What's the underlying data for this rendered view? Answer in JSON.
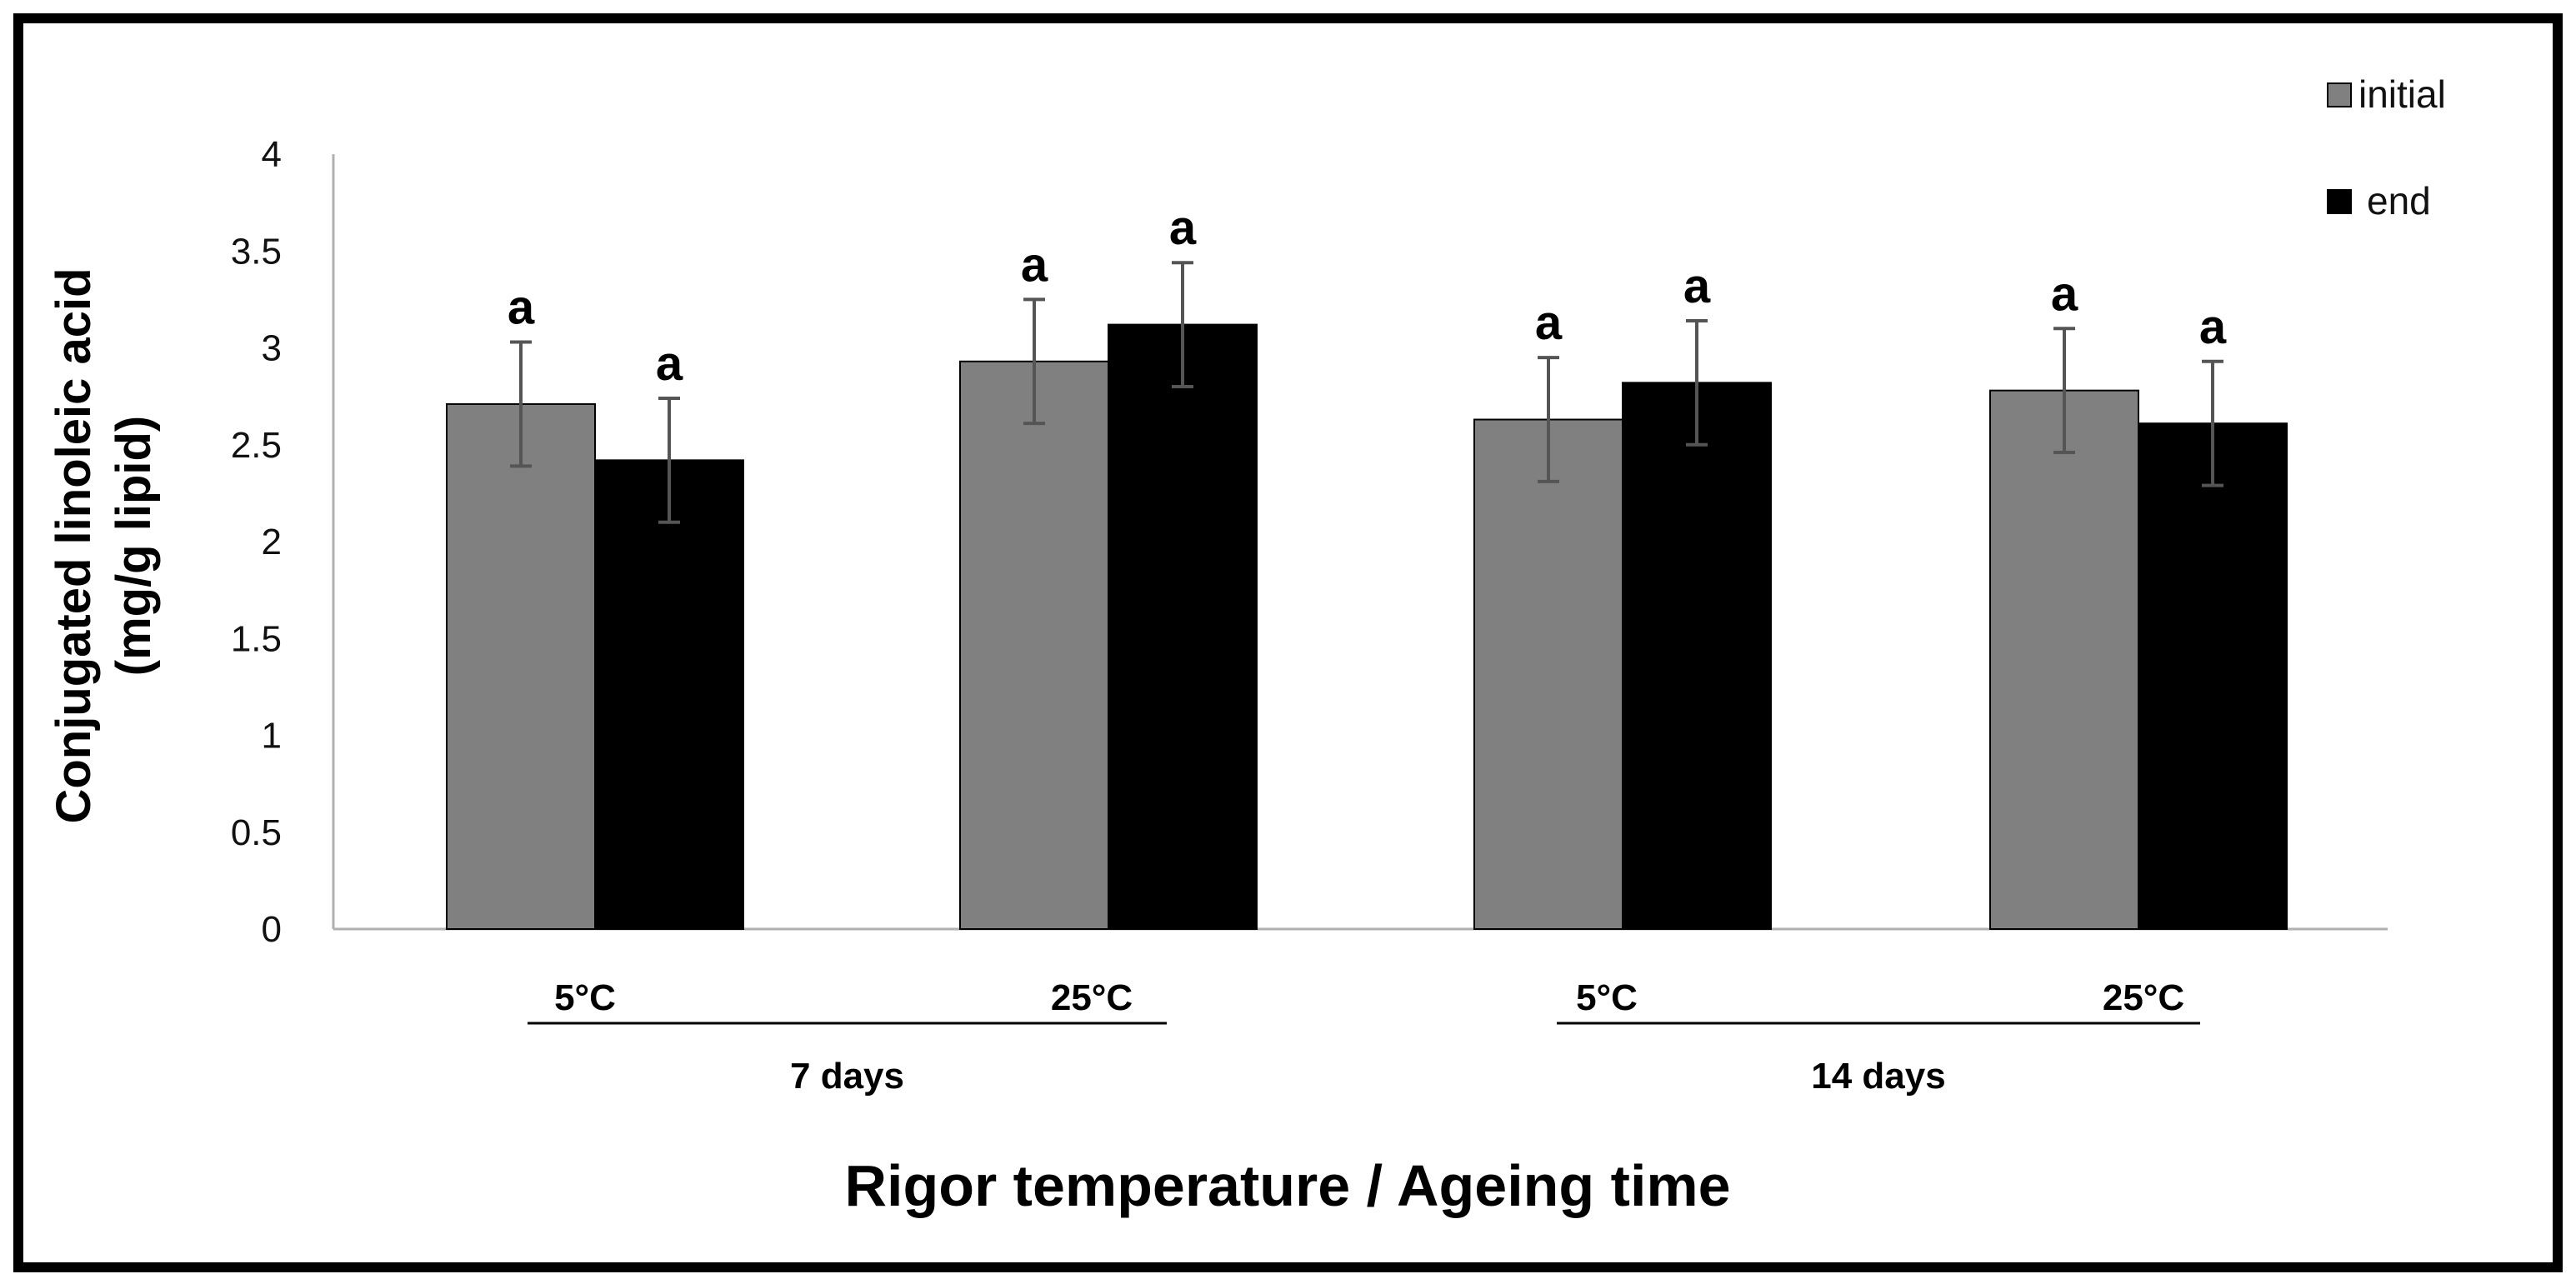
{
  "chart_data": {
    "type": "bar",
    "title": "",
    "xlabel": "Rigor temperature / Ageing time",
    "ylabel_line1": "Conjugated linoleic acid",
    "ylabel_line2": "(mg/g lipid)",
    "ylim": [
      0,
      4
    ],
    "yticks": [
      "0",
      "0.5",
      "1",
      "1.5",
      "2",
      "2.5",
      "3",
      "3.5",
      "4"
    ],
    "categories": [
      "5°C",
      "25°C",
      "5°C",
      "25°C"
    ],
    "groups": [
      {
        "label": "7 days"
      },
      {
        "label": "14 days"
      }
    ],
    "series": [
      {
        "name": "initial",
        "color": "#808080",
        "values": [
          2.71,
          2.93,
          2.63,
          2.78
        ],
        "errors": [
          0.32,
          0.32,
          0.32,
          0.32
        ],
        "sig": [
          "a",
          "a",
          "a",
          "a"
        ]
      },
      {
        "name": "end",
        "color": "#000000",
        "values": [
          2.42,
          3.12,
          2.82,
          2.61
        ],
        "errors": [
          0.32,
          0.32,
          0.32,
          0.32
        ],
        "sig": [
          "a",
          "a",
          "a",
          "a"
        ]
      }
    ],
    "legend_position": "top-right"
  }
}
